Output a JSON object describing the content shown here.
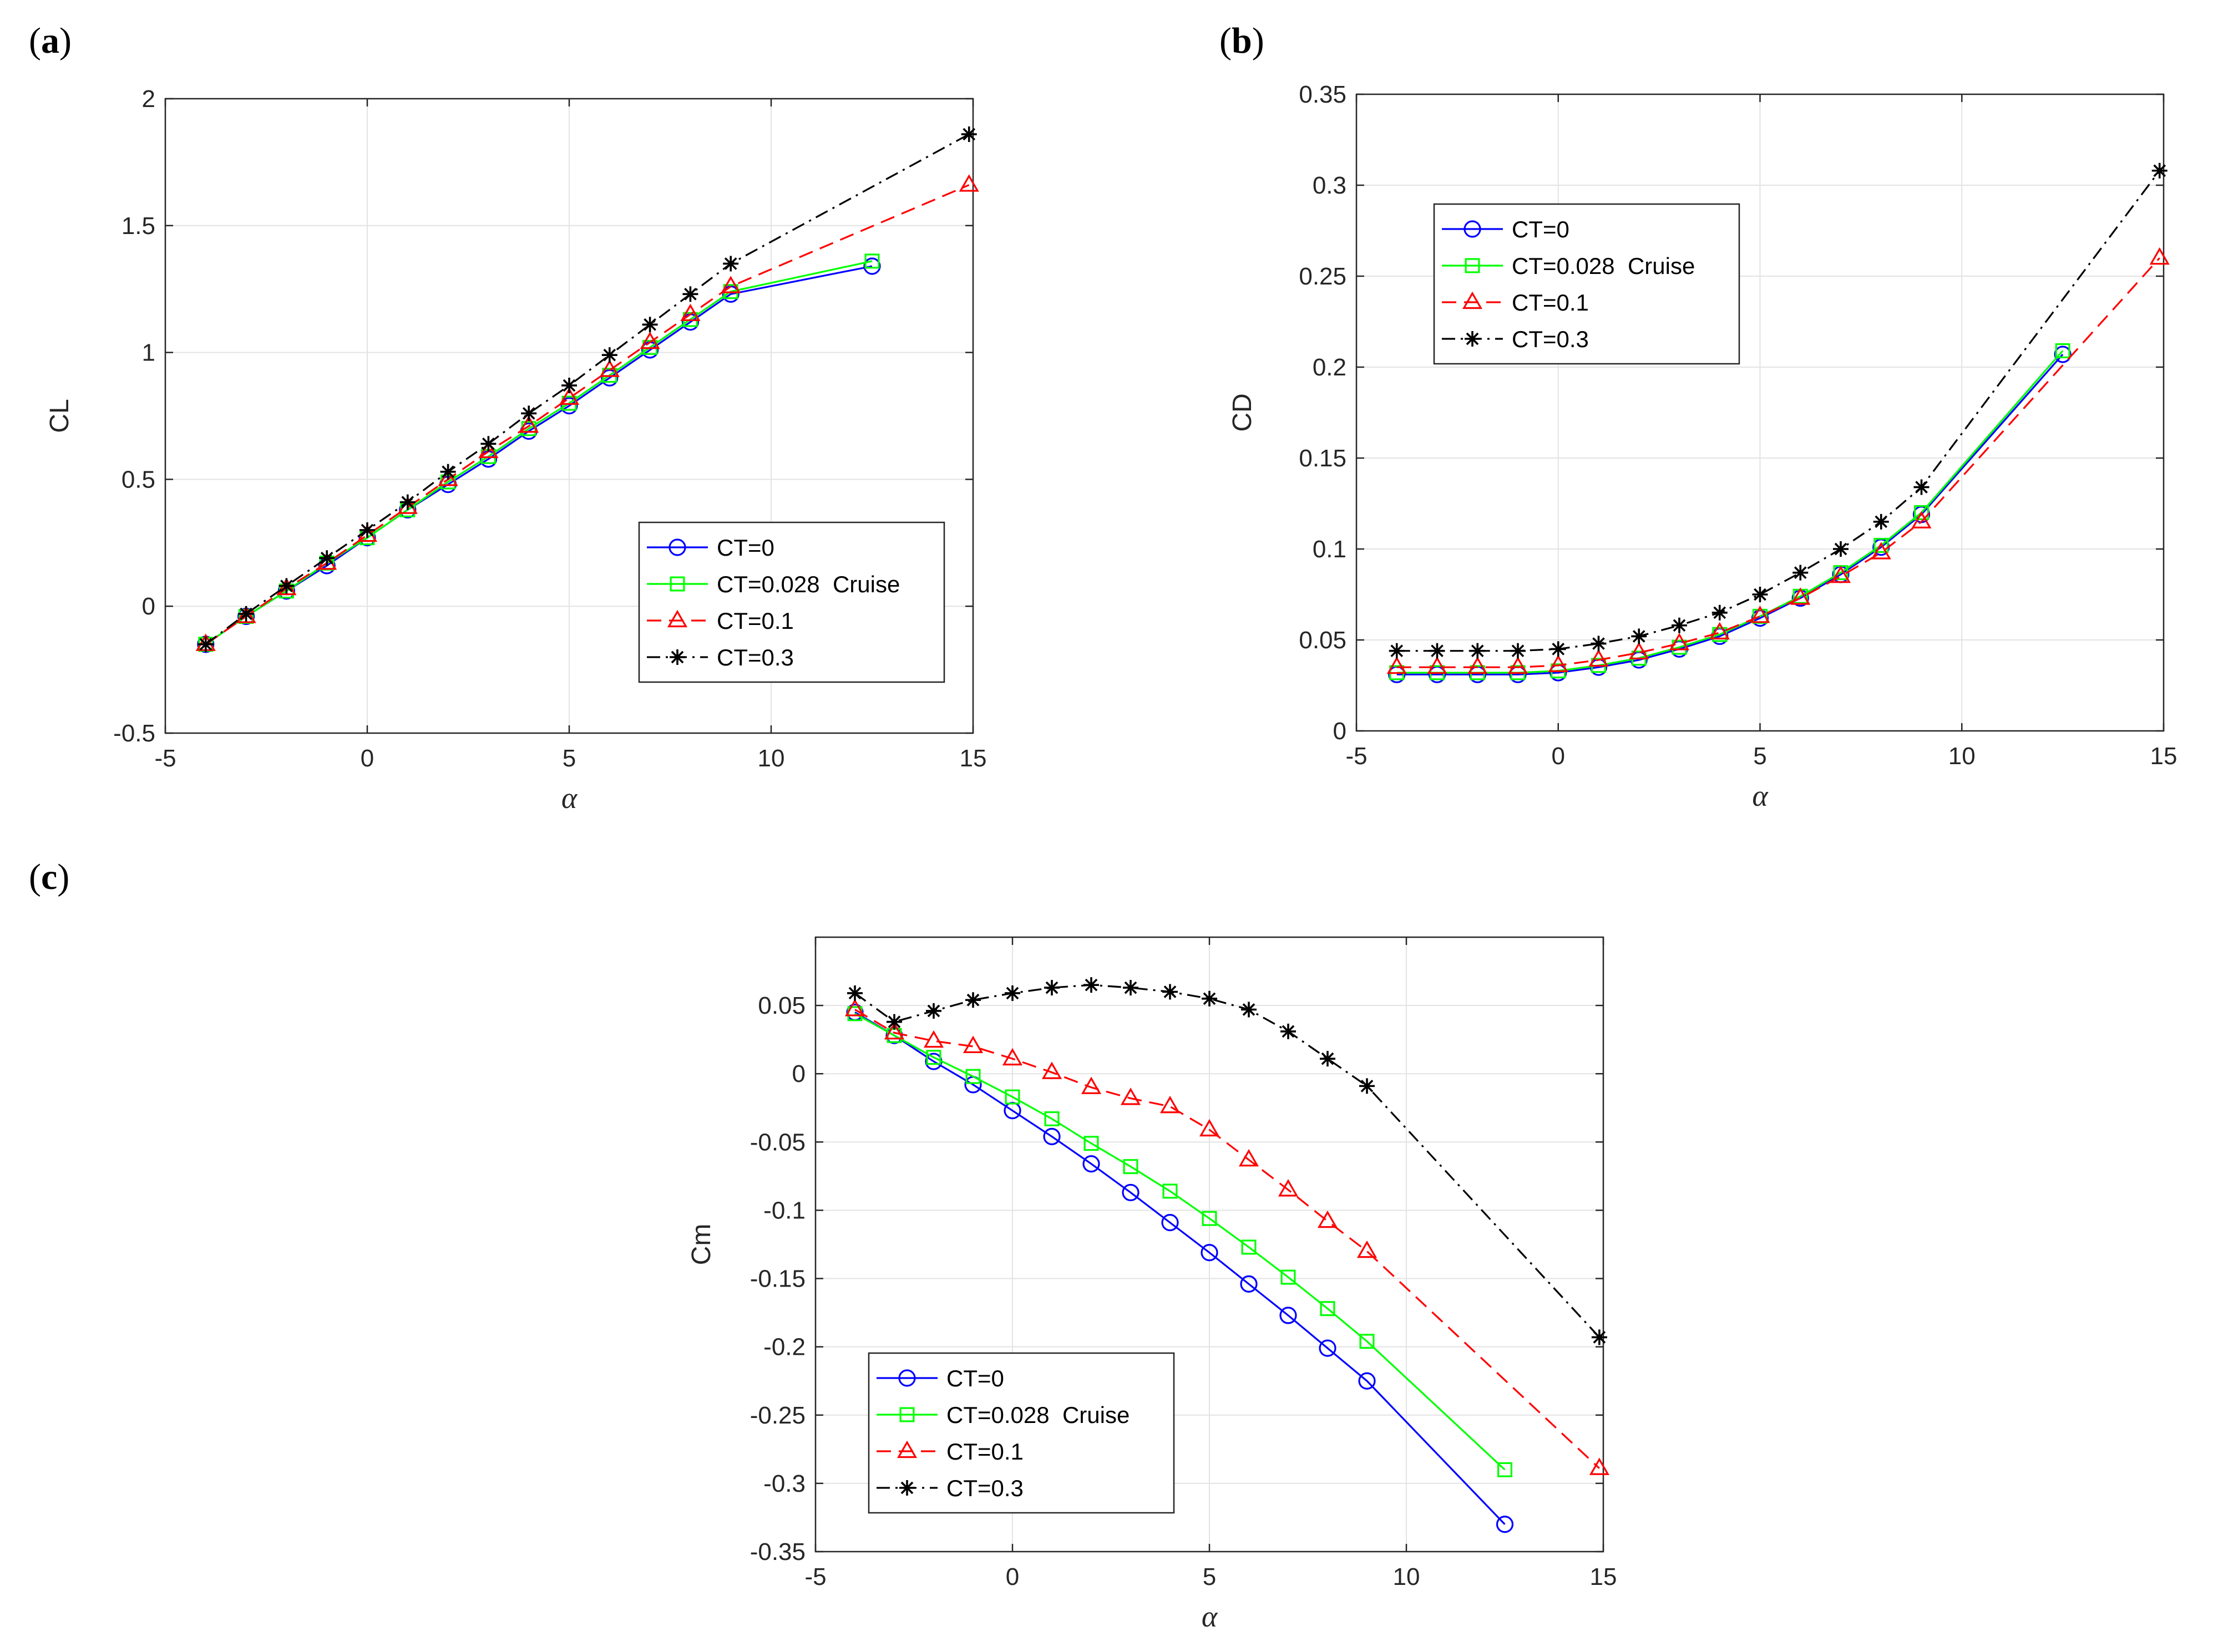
{
  "chart_data": [
    {
      "type": "line",
      "panel": "a",
      "xlabel": "α",
      "ylabel": "CL",
      "xlim": [
        -5,
        15
      ],
      "ylim": [
        -0.5,
        2
      ],
      "xticks": [
        -5,
        0,
        5,
        10,
        15
      ],
      "yticks": [
        -0.5,
        0,
        0.5,
        1,
        1.5,
        2
      ],
      "xtick_labels": [
        "-5",
        "0",
        "5",
        "10",
        "15"
      ],
      "ytick_labels": [
        "-0.5",
        "0",
        "0.5",
        "1",
        "1.5",
        "2"
      ],
      "grid": true,
      "legend_position": "bottom-right",
      "series": [
        {
          "name": "CT=0",
          "color": "#0000ff",
          "dash": "solid",
          "marker": "circle",
          "x": [
            -4,
            -3,
            -2,
            -1,
            0,
            1,
            2,
            3,
            4,
            5,
            6,
            7,
            8,
            9,
            12.5
          ],
          "y": [
            -0.15,
            -0.04,
            0.06,
            0.16,
            0.27,
            0.38,
            0.48,
            0.58,
            0.69,
            0.79,
            0.9,
            1.01,
            1.12,
            1.23,
            1.34
          ]
        },
        {
          "name": "CT=0.028  Cruise",
          "color": "#00ff00",
          "dash": "solid",
          "marker": "square",
          "x": [
            -4,
            -3,
            -2,
            -1,
            0,
            1,
            2,
            3,
            4,
            5,
            6,
            7,
            8,
            9,
            12.5
          ],
          "y": [
            -0.15,
            -0.04,
            0.06,
            0.17,
            0.27,
            0.38,
            0.49,
            0.59,
            0.7,
            0.8,
            0.91,
            1.02,
            1.13,
            1.24,
            1.36
          ]
        },
        {
          "name": "CT=0.1",
          "color": "#ff0000",
          "dash": "dashed",
          "marker": "triangle",
          "x": [
            -4,
            -3,
            -2,
            -1,
            0,
            1,
            2,
            3,
            4,
            5,
            6,
            7,
            8,
            9,
            14.9
          ],
          "y": [
            -0.15,
            -0.04,
            0.07,
            0.17,
            0.28,
            0.39,
            0.5,
            0.61,
            0.71,
            0.82,
            0.93,
            1.04,
            1.15,
            1.26,
            1.66
          ]
        },
        {
          "name": "CT=0.3",
          "color": "#000000",
          "dash": "dashdot",
          "marker": "star",
          "x": [
            -4,
            -3,
            -2,
            -1,
            0,
            1,
            2,
            3,
            4,
            5,
            6,
            7,
            8,
            9,
            14.9
          ],
          "y": [
            -0.15,
            -0.03,
            0.08,
            0.19,
            0.3,
            0.41,
            0.53,
            0.64,
            0.76,
            0.87,
            0.99,
            1.11,
            1.23,
            1.35,
            1.86
          ]
        }
      ]
    },
    {
      "type": "line",
      "panel": "b",
      "xlabel": "α",
      "ylabel": "CD",
      "xlim": [
        -5,
        15
      ],
      "ylim": [
        0,
        0.35
      ],
      "xticks": [
        -5,
        0,
        5,
        10,
        15
      ],
      "yticks": [
        0,
        0.05,
        0.1,
        0.15,
        0.2,
        0.25,
        0.3,
        0.35
      ],
      "xtick_labels": [
        "-5",
        "0",
        "5",
        "10",
        "15"
      ],
      "ytick_labels": [
        "0",
        "0.05",
        "0.1",
        "0.15",
        "0.2",
        "0.25",
        "0.3",
        "0.35"
      ],
      "grid": true,
      "legend_position": "top-left",
      "series": [
        {
          "name": "CT=0",
          "color": "#0000ff",
          "dash": "solid",
          "marker": "circle",
          "x": [
            -4,
            -3,
            -2,
            -1,
            0,
            1,
            2,
            3,
            4,
            5,
            6,
            7,
            8,
            9,
            12.5
          ],
          "y": [
            0.031,
            0.031,
            0.031,
            0.031,
            0.032,
            0.035,
            0.039,
            0.045,
            0.052,
            0.062,
            0.073,
            0.086,
            0.101,
            0.119,
            0.207
          ]
        },
        {
          "name": "CT=0.028  Cruise",
          "color": "#00ff00",
          "dash": "solid",
          "marker": "square",
          "x": [
            -4,
            -3,
            -2,
            -1,
            0,
            1,
            2,
            3,
            4,
            5,
            6,
            7,
            8,
            9,
            12.5
          ],
          "y": [
            0.032,
            0.032,
            0.032,
            0.032,
            0.033,
            0.036,
            0.04,
            0.046,
            0.053,
            0.063,
            0.074,
            0.087,
            0.102,
            0.12,
            0.209
          ]
        },
        {
          "name": "CT=0.1",
          "color": "#ff0000",
          "dash": "dashed",
          "marker": "triangle",
          "x": [
            -4,
            -3,
            -2,
            -1,
            0,
            1,
            2,
            3,
            4,
            5,
            6,
            7,
            8,
            9,
            14.9
          ],
          "y": [
            0.035,
            0.035,
            0.035,
            0.035,
            0.036,
            0.039,
            0.043,
            0.048,
            0.054,
            0.063,
            0.073,
            0.085,
            0.098,
            0.115,
            0.26
          ]
        },
        {
          "name": "CT=0.3",
          "color": "#000000",
          "dash": "dashdot",
          "marker": "star",
          "x": [
            -4,
            -3,
            -2,
            -1,
            0,
            1,
            2,
            3,
            4,
            5,
            6,
            7,
            8,
            9,
            14.9
          ],
          "y": [
            0.044,
            0.044,
            0.044,
            0.044,
            0.045,
            0.048,
            0.052,
            0.058,
            0.065,
            0.075,
            0.087,
            0.1,
            0.115,
            0.134,
            0.308
          ]
        }
      ]
    },
    {
      "type": "line",
      "panel": "c",
      "xlabel": "α",
      "ylabel": "Cm",
      "xlim": [
        -5,
        15
      ],
      "ylim": [
        -0.35,
        0.1
      ],
      "xticks": [
        -5,
        0,
        5,
        10,
        15
      ],
      "yticks": [
        -0.35,
        -0.3,
        -0.25,
        -0.2,
        -0.15,
        -0.1,
        -0.05,
        0,
        0.05
      ],
      "xtick_labels": [
        "-5",
        "0",
        "5",
        "10",
        "15"
      ],
      "ytick_labels": [
        "-0.35",
        "-0.3",
        "-0.25",
        "-0.2",
        "-0.15",
        "-0.1",
        "-0.05",
        "0",
        "0.05"
      ],
      "grid": true,
      "legend_position": "bottom-left",
      "series": [
        {
          "name": "CT=0",
          "color": "#0000ff",
          "dash": "solid",
          "marker": "circle",
          "x": [
            -4,
            -3,
            -2,
            -1,
            0,
            1,
            2,
            3,
            4,
            5,
            6,
            7,
            8,
            9,
            12.5
          ],
          "y": [
            0.045,
            0.028,
            0.009,
            -0.008,
            -0.027,
            -0.046,
            -0.066,
            -0.087,
            -0.109,
            -0.131,
            -0.154,
            -0.177,
            -0.201,
            -0.225,
            -0.33
          ]
        },
        {
          "name": "CT=0.028  Cruise",
          "color": "#00ff00",
          "dash": "solid",
          "marker": "square",
          "x": [
            -4,
            -3,
            -2,
            -1,
            0,
            1,
            2,
            3,
            4,
            5,
            6,
            7,
            8,
            9,
            12.5
          ],
          "y": [
            0.044,
            0.028,
            0.012,
            -0.002,
            -0.017,
            -0.033,
            -0.051,
            -0.068,
            -0.086,
            -0.106,
            -0.127,
            -0.149,
            -0.172,
            -0.196,
            -0.29
          ]
        },
        {
          "name": "CT=0.1",
          "color": "#ff0000",
          "dash": "dashed",
          "marker": "triangle",
          "x": [
            -4,
            -3,
            -2,
            -1,
            0,
            1,
            2,
            3,
            4,
            5,
            6,
            7,
            8,
            9,
            14.9
          ],
          "y": [
            0.047,
            0.03,
            0.024,
            0.02,
            0.011,
            0.001,
            -0.01,
            -0.018,
            -0.024,
            -0.041,
            -0.063,
            -0.085,
            -0.108,
            -0.13,
            -0.289
          ]
        },
        {
          "name": "CT=0.3",
          "color": "#000000",
          "dash": "dashdot",
          "marker": "star",
          "x": [
            -4,
            -3,
            -2,
            -1,
            0,
            1,
            2,
            3,
            4,
            5,
            6,
            7,
            8,
            9,
            14.9
          ],
          "y": [
            0.059,
            0.038,
            0.046,
            0.054,
            0.059,
            0.063,
            0.065,
            0.063,
            0.06,
            0.055,
            0.047,
            0.031,
            0.011,
            -0.009,
            -0.193
          ]
        }
      ]
    }
  ]
}
